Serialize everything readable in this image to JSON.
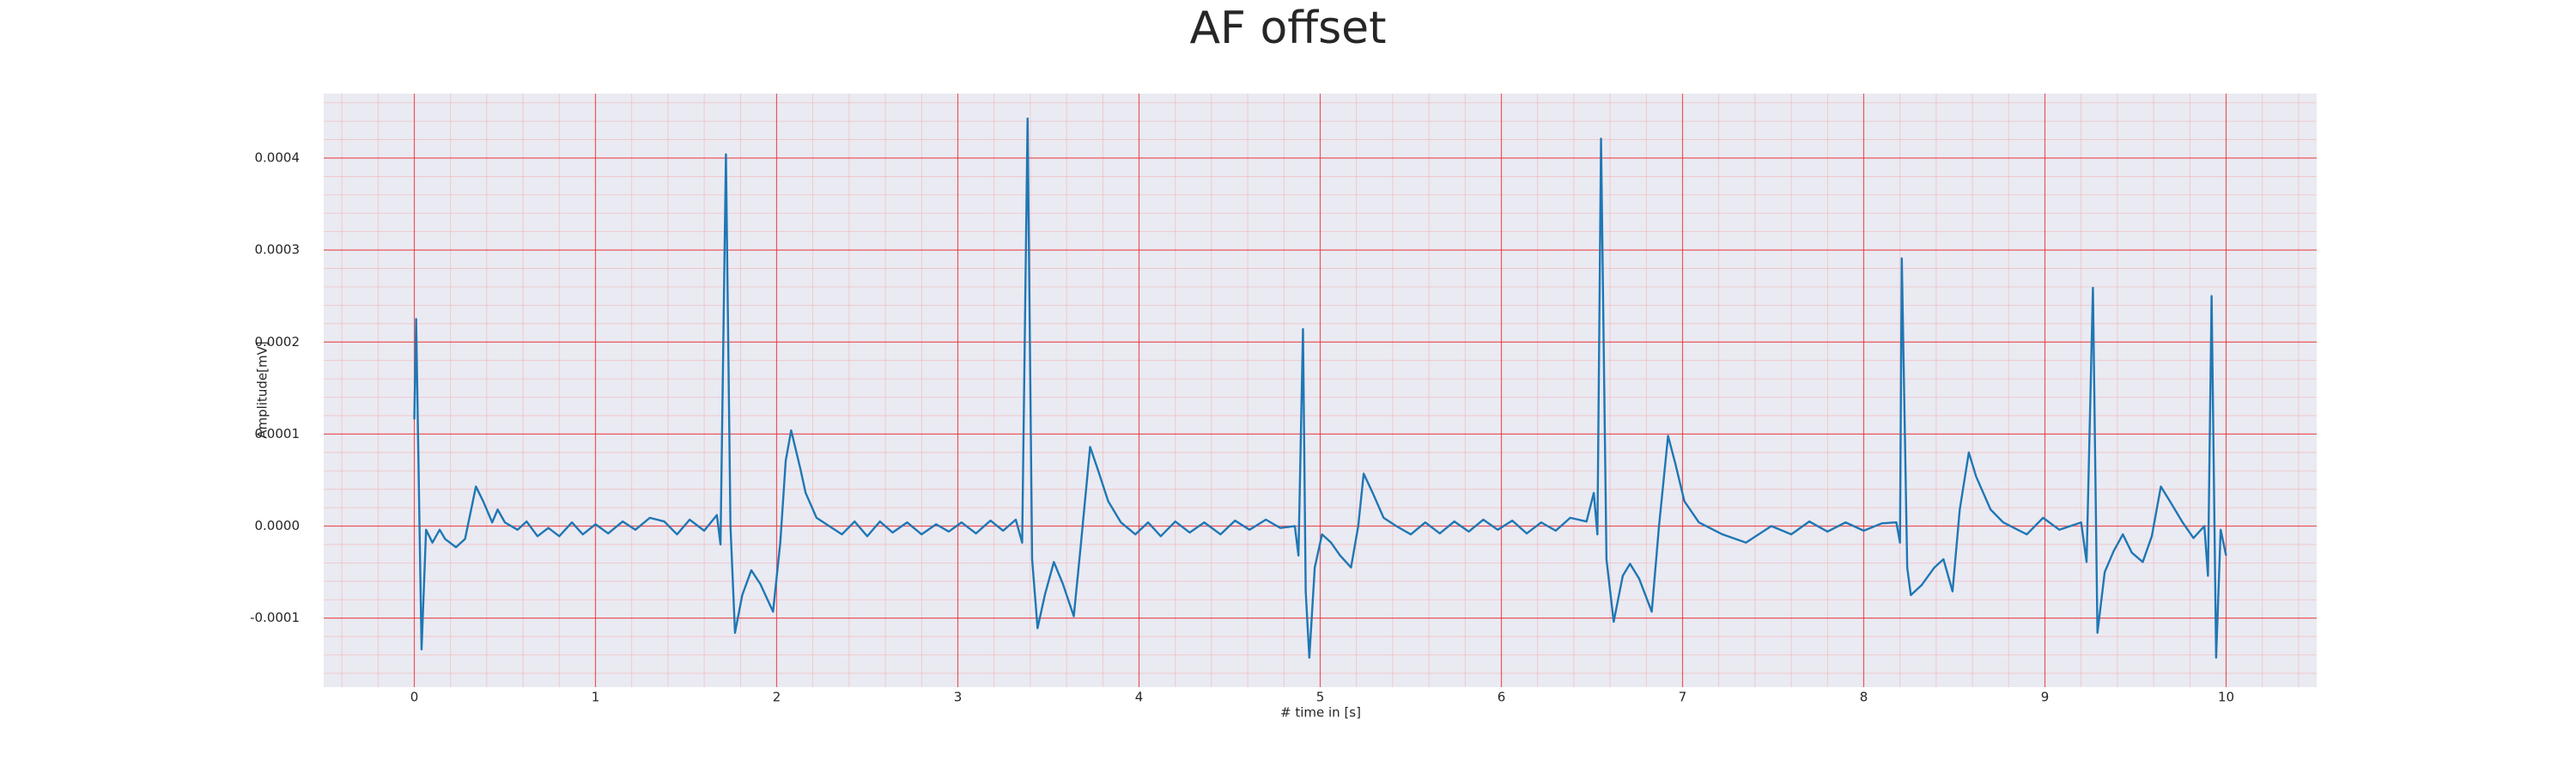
{
  "chart_data": {
    "type": "line",
    "title": "AF offset",
    "xlabel": "# time in [s]",
    "ylabel": "Amplitude[mV]",
    "color": "#1f77b4",
    "grid": true,
    "xlim": [
      -0.5,
      10.5
    ],
    "ylim": [
      -0.000175,
      0.00047
    ],
    "xticks": [
      0,
      1,
      2,
      3,
      4,
      5,
      6,
      7,
      8,
      9,
      10
    ],
    "yticks": [
      -0.0001,
      {
        "value": 0,
        "label": "0.0000"
      },
      0.0001,
      0.0002,
      0.0003,
      0.0004
    ],
    "x": [
      0,
      0.01,
      0.04,
      0.065,
      0.1,
      0.14,
      0.17,
      0.23,
      0.28,
      0.34,
      0.38,
      0.43,
      0.46,
      0.5,
      0.57,
      0.62,
      0.68,
      0.74,
      0.8,
      0.87,
      0.93,
      1.0,
      1.07,
      1.15,
      1.22,
      1.3,
      1.38,
      1.45,
      1.52,
      1.6,
      1.67,
      1.69,
      1.72,
      1.745,
      1.77,
      1.81,
      1.86,
      1.91,
      1.98,
      2.02,
      2.05,
      2.08,
      2.13,
      2.16,
      2.22,
      2.29,
      2.36,
      2.43,
      2.5,
      2.57,
      2.64,
      2.72,
      2.8,
      2.88,
      2.95,
      3.02,
      3.1,
      3.18,
      3.25,
      3.32,
      3.355,
      3.385,
      3.41,
      3.44,
      3.48,
      3.53,
      3.58,
      3.64,
      3.68,
      3.73,
      3.77,
      3.83,
      3.9,
      3.98,
      4.05,
      4.12,
      4.2,
      4.28,
      4.36,
      4.45,
      4.53,
      4.61,
      4.7,
      4.78,
      4.86,
      4.88,
      4.905,
      4.92,
      4.94,
      4.97,
      5.01,
      5.06,
      5.11,
      5.17,
      5.21,
      5.24,
      5.29,
      5.35,
      5.42,
      5.5,
      5.58,
      5.66,
      5.74,
      5.82,
      5.9,
      5.98,
      6.06,
      6.14,
      6.22,
      6.3,
      6.38,
      6.47,
      6.51,
      6.53,
      6.55,
      6.58,
      6.62,
      6.67,
      6.71,
      6.76,
      6.83,
      6.87,
      6.92,
      6.96,
      7.01,
      7.09,
      7.22,
      7.35,
      7.49,
      7.6,
      7.7,
      7.8,
      7.9,
      8.0,
      8.1,
      8.18,
      8.2,
      8.21,
      8.24,
      8.26,
      8.32,
      8.39,
      8.44,
      8.49,
      8.53,
      8.58,
      8.62,
      8.7,
      8.77,
      8.9,
      8.99,
      9.08,
      9.2,
      9.23,
      9.265,
      9.29,
      9.33,
      9.38,
      9.43,
      9.48,
      9.54,
      9.59,
      9.64,
      9.69,
      9.76,
      9.82,
      9.88,
      9.9,
      9.92,
      9.945,
      9.97,
      10.0
    ],
    "values": [
      0.000116,
      0.000225,
      -0.000134,
      -4e-06,
      -1.8e-05,
      -4e-06,
      -1.4e-05,
      -2.3e-05,
      -1.4e-05,
      4.3e-05,
      2.7e-05,
      4e-06,
      1.8e-05,
      4e-06,
      -4e-06,
      5e-06,
      -1.1e-05,
      -2e-06,
      -1.1e-05,
      4e-06,
      -9e-06,
      2e-06,
      -8e-06,
      5e-06,
      -4e-06,
      9e-06,
      5e-06,
      -9e-06,
      7e-06,
      -5e-06,
      1.2e-05,
      -2e-05,
      0.000404,
      0.0,
      -0.000116,
      -7.5e-05,
      -4.8e-05,
      -6.3e-05,
      -9.3e-05,
      -1.8e-05,
      7.1e-05,
      0.000104,
      6.3e-05,
      3.6e-05,
      9e-06,
      0.0,
      -9e-06,
      5e-06,
      -1.1e-05,
      5e-06,
      -7e-06,
      4e-06,
      -9e-06,
      2e-06,
      -6e-06,
      4e-06,
      -8e-06,
      6e-06,
      -5e-06,
      7e-06,
      -1.8e-05,
      0.000443,
      -3.6e-05,
      -0.000111,
      -7.5e-05,
      -3.9e-05,
      -6.3e-05,
      -9.8e-05,
      -1.8e-05,
      8.6e-05,
      6.3e-05,
      2.7e-05,
      4e-06,
      -9e-06,
      4e-06,
      -1.1e-05,
      5e-06,
      -7e-06,
      4e-06,
      -9e-06,
      6e-06,
      -4e-06,
      7e-06,
      -2e-06,
      0.0,
      -3.2e-05,
      0.000214,
      -7.1e-05,
      -0.000143,
      -4.5e-05,
      -9e-06,
      -1.8e-05,
      -3.2e-05,
      -4.5e-05,
      0.0,
      5.7e-05,
      3.6e-05,
      9e-06,
      0.0,
      -9e-06,
      4e-06,
      -8e-06,
      5e-06,
      -6e-06,
      7e-06,
      -4e-06,
      6e-06,
      -8e-06,
      4e-06,
      -5e-06,
      9e-06,
      5e-06,
      3.6e-05,
      -9e-06,
      0.000421,
      -3.6e-05,
      -0.000104,
      -5.4e-05,
      -4.1e-05,
      -5.7e-05,
      -9.3e-05,
      0.0,
      9.8e-05,
      6.8e-05,
      2.7e-05,
      4e-06,
      -9e-06,
      -1.8e-05,
      0.0,
      -9e-06,
      5e-06,
      -6e-06,
      4e-06,
      -5e-06,
      3e-06,
      4e-06,
      -1.8e-05,
      0.000291,
      -4.5e-05,
      -7.5e-05,
      -6.4e-05,
      -4.5e-05,
      -3.6e-05,
      -7.1e-05,
      1.8e-05,
      8e-05,
      5.4e-05,
      1.8e-05,
      4e-06,
      -9e-06,
      9e-06,
      -4e-06,
      4e-06,
      -3.9e-05,
      0.000259,
      -0.000116,
      -5e-05,
      -2.7e-05,
      -9e-06,
      -2.9e-05,
      -3.9e-05,
      -1.1e-05,
      4.3e-05,
      2.7e-05,
      4e-06,
      -1.3e-05,
      0.0,
      -5.4e-05,
      0.00025,
      -0.000143,
      -4e-06,
      -3.2e-05
    ]
  }
}
